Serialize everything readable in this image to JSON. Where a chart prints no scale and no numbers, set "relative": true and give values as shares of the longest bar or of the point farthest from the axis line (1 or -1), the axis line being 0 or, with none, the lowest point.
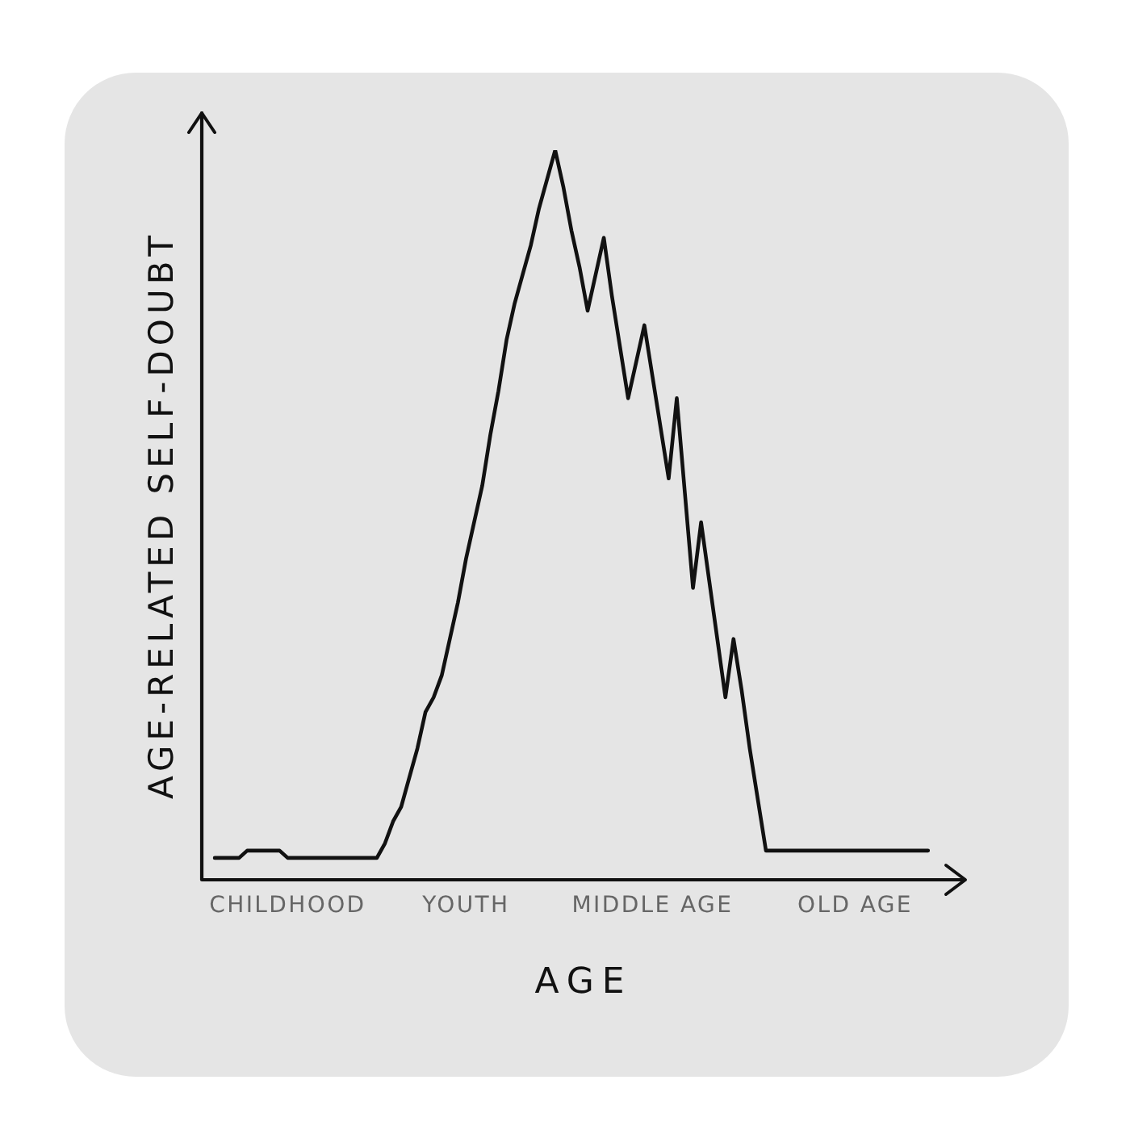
{
  "chart_data": {
    "type": "line",
    "xlabel": "AGE",
    "ylabel": "AGE-RELATED SELF-DOUBT",
    "relative": true,
    "marker": "none",
    "color": "#111111",
    "categories": [
      null,
      null,
      null,
      null,
      null,
      null,
      null,
      null,
      null,
      "CHILDHOOD",
      null,
      null,
      null,
      null,
      null,
      null,
      null,
      null,
      null,
      null,
      null,
      null,
      null,
      null,
      null,
      null,
      null,
      null,
      null,
      null,
      null,
      "YOUTH",
      null,
      null,
      null,
      null,
      null,
      null,
      null,
      null,
      null,
      null,
      null,
      null,
      null,
      null,
      null,
      null,
      null,
      null,
      null,
      null,
      null,
      null,
      "MIDDLE AGE",
      null,
      null,
      null,
      null,
      null,
      null,
      null,
      null,
      null,
      null,
      null,
      null,
      null,
      null,
      null,
      null,
      null,
      null,
      null,
      null,
      null,
      null,
      null,
      null,
      "OLD AGE",
      null,
      null,
      null,
      null,
      null,
      null,
      null,
      null,
      null
    ],
    "values": [
      0.03,
      0.03,
      0.03,
      0.03,
      0.04,
      0.04,
      0.04,
      0.04,
      0.04,
      0.03,
      0.03,
      0.03,
      0.03,
      0.03,
      0.03,
      0.03,
      0.03,
      0.03,
      0.03,
      0.03,
      0.03,
      0.05,
      0.08,
      0.1,
      0.14,
      0.18,
      0.23,
      0.25,
      0.28,
      0.33,
      0.38,
      0.44,
      0.49,
      0.54,
      0.61,
      0.67,
      0.74,
      0.79,
      0.83,
      0.87,
      0.92,
      0.96,
      1,
      0.95,
      0.89,
      0.84,
      0.78,
      0.83,
      0.88,
      0.8,
      0.73,
      0.66,
      0.71,
      0.76,
      0.69,
      0.62,
      0.55,
      0.66,
      0.53,
      0.4,
      0.49,
      0.41,
      0.33,
      0.25,
      0.33,
      0.26,
      0.18,
      0.11,
      0.04,
      0.04,
      0.04,
      0.04,
      0.04,
      0.04,
      0.04,
      0.04,
      0.04,
      0.04,
      0.04,
      0.04,
      0.04,
      0.04,
      0.04,
      0.04,
      0.04,
      0.04,
      0.04,
      0.04,
      0.04
    ]
  }
}
